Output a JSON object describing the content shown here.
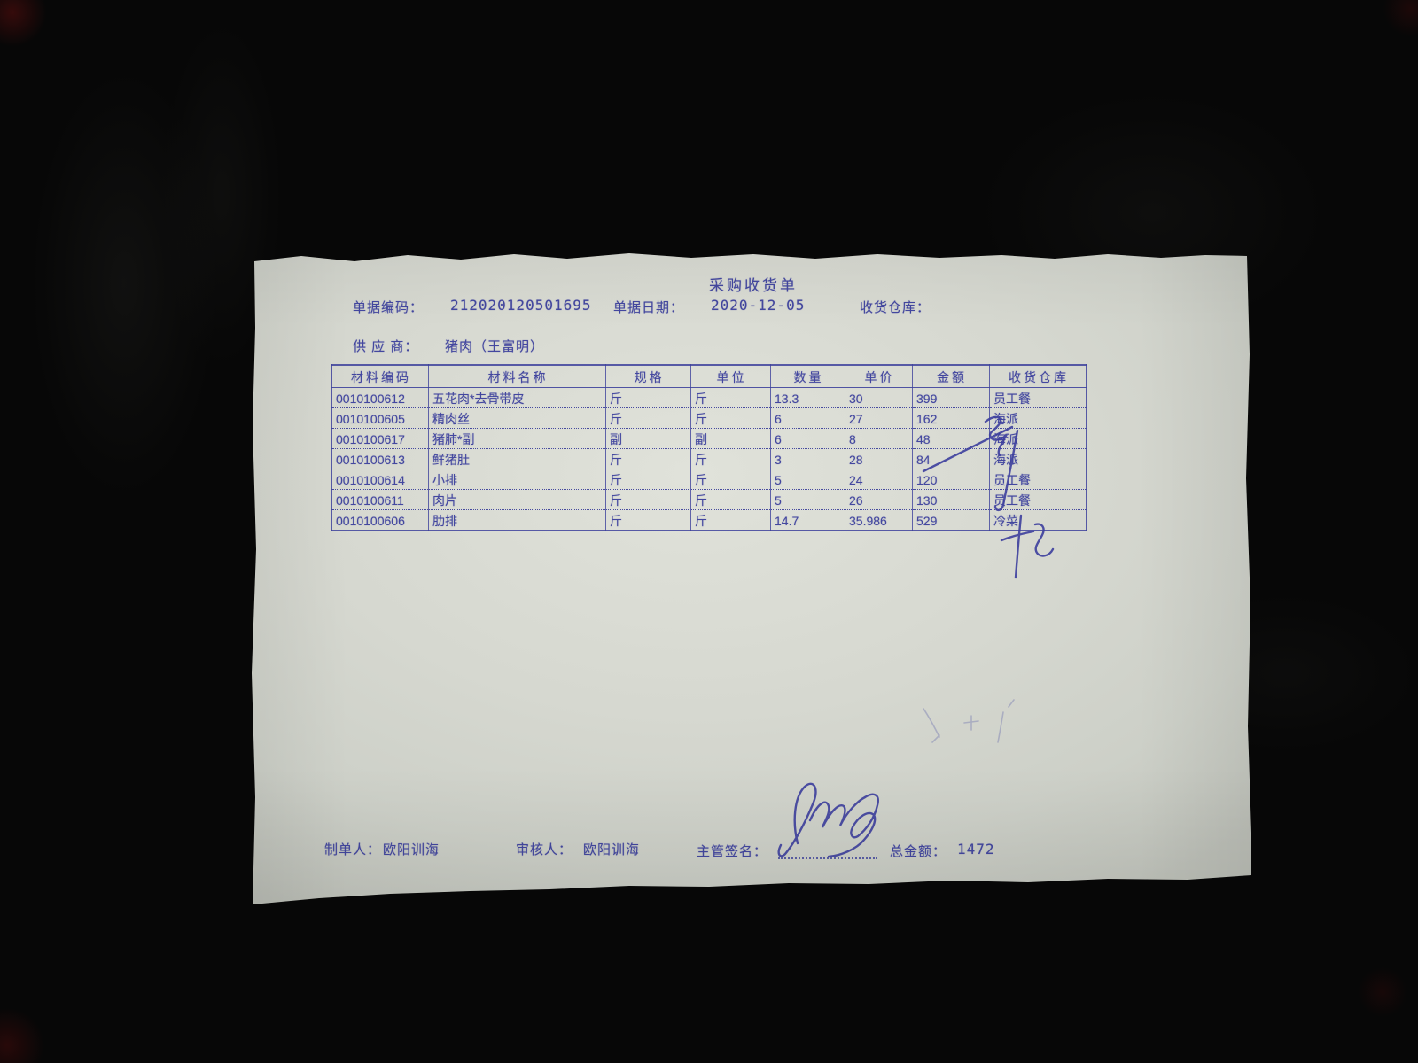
{
  "document": {
    "title": "采购收货单",
    "fields": {
      "doc_no_label": "单据编码：",
      "doc_no": "212020120501695",
      "date_label": "单据日期：",
      "date": "2020-12-05",
      "warehouse_label": "收货仓库：",
      "warehouse": "",
      "supplier_label": "供 应 商：",
      "supplier": "猪肉（王富明）"
    },
    "table": {
      "headers": [
        "材料编码",
        "材料名称",
        "规格",
        "单位",
        "数量",
        "单价",
        "金额",
        "收货仓库"
      ],
      "rows": [
        [
          "0010100612",
          "五花肉*去骨带皮",
          "斤",
          "斤",
          "13.3",
          "30",
          "399",
          "员工餐"
        ],
        [
          "0010100605",
          "精肉丝",
          "斤",
          "斤",
          "6",
          "27",
          "162",
          "海派"
        ],
        [
          "0010100617",
          "猪肺*副",
          "副",
          "副",
          "6",
          "8",
          "48",
          "海派"
        ],
        [
          "0010100613",
          "鲜猪肚",
          "斤",
          "斤",
          "3",
          "28",
          "84",
          "海派"
        ],
        [
          "0010100614",
          "小排",
          "斤",
          "斤",
          "5",
          "24",
          "120",
          "员工餐"
        ],
        [
          "0010100611",
          "肉片",
          "斤",
          "斤",
          "5",
          "26",
          "130",
          "员工餐"
        ],
        [
          "0010100606",
          "肋排",
          "斤",
          "斤",
          "14.7",
          "35.986",
          "529",
          "冷菜"
        ]
      ]
    },
    "footer": {
      "maker_label": "制单人：",
      "maker": "欧阳训海",
      "auditor_label": "审核人：",
      "auditor": "欧阳训海",
      "sign_label": "主管签名：",
      "total_label": "总金额：",
      "total": "1472"
    },
    "annotations": {
      "handwriting_note": "供货方签字及涂改记号",
      "ink_color": "#3d3f9e",
      "print_ink_color": "#43479f",
      "paper_color": "#d6d8d0"
    }
  }
}
